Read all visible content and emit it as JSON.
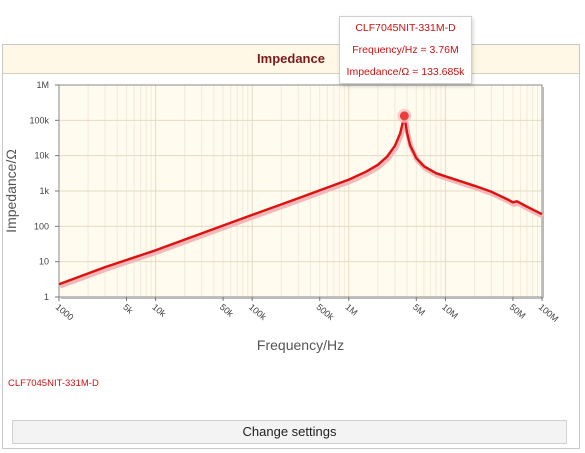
{
  "panel": {
    "title": "Impedance"
  },
  "tooltip": {
    "line1": "CLF7045NIT-331M-D",
    "line2": "Frequency/Hz = 3.76M",
    "line3": "Impedance/Ω = 133.685k"
  },
  "legend_label": "CLF7045NIT-331M-D",
  "settings_button": "Change settings",
  "chart_data": {
    "type": "line",
    "title": "Impedance",
    "xlabel": "Frequency/Hz",
    "ylabel": "Impedance/Ω",
    "x_scale": "log",
    "y_scale": "log",
    "xlim": [
      1000,
      100000000
    ],
    "ylim": [
      1,
      1000000
    ],
    "x_ticks": [
      {
        "value": 1000,
        "label": "1000"
      },
      {
        "value": 5000,
        "label": "5k"
      },
      {
        "value": 10000,
        "label": "10k"
      },
      {
        "value": 50000,
        "label": "50k"
      },
      {
        "value": 100000,
        "label": "100k"
      },
      {
        "value": 500000,
        "label": "500k"
      },
      {
        "value": 1000000,
        "label": "1M"
      },
      {
        "value": 5000000,
        "label": "5M"
      },
      {
        "value": 10000000,
        "label": "10M"
      },
      {
        "value": 50000000,
        "label": "50M"
      },
      {
        "value": 100000000,
        "label": "100M"
      }
    ],
    "y_ticks": [
      {
        "value": 1,
        "label": "1"
      },
      {
        "value": 10,
        "label": "10"
      },
      {
        "value": 100,
        "label": "100"
      },
      {
        "value": 1000,
        "label": "1k"
      },
      {
        "value": 10000,
        "label": "10k"
      },
      {
        "value": 100000,
        "label": "100k"
      },
      {
        "value": 1000000,
        "label": "1M"
      }
    ],
    "grid": true,
    "series": [
      {
        "name": "CLF7045NIT-331M-D",
        "color": "#dd1111",
        "points": [
          [
            1000,
            2.3
          ],
          [
            3000,
            7
          ],
          [
            10000,
            21
          ],
          [
            30000,
            63
          ],
          [
            100000,
            210
          ],
          [
            300000,
            620
          ],
          [
            1000000,
            2100
          ],
          [
            1500000,
            3500
          ],
          [
            2000000,
            5500
          ],
          [
            2500000,
            9500
          ],
          [
            3000000,
            19000
          ],
          [
            3400000,
            42000
          ],
          [
            3760000,
            133685
          ],
          [
            4000000,
            45000
          ],
          [
            4300000,
            20000
          ],
          [
            5000000,
            8500
          ],
          [
            6000000,
            5000
          ],
          [
            8000000,
            3200
          ],
          [
            10000000,
            2600
          ],
          [
            20000000,
            1400
          ],
          [
            30000000,
            950
          ],
          [
            45000000,
            560
          ],
          [
            50000000,
            480
          ],
          [
            55000000,
            510
          ],
          [
            70000000,
            360
          ],
          [
            100000000,
            220
          ]
        ]
      }
    ],
    "highlight": {
      "x": 3760000,
      "y": 133685
    }
  }
}
